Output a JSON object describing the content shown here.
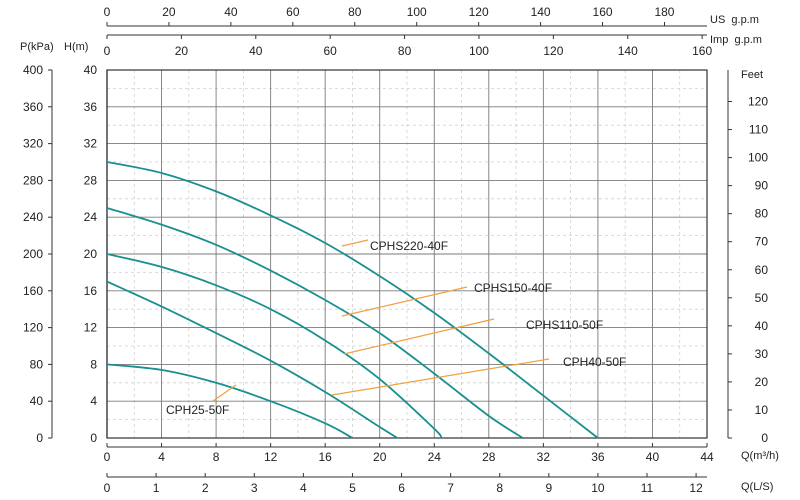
{
  "chart_data": {
    "type": "line",
    "title": "",
    "xlabel": "Q(m³/h)",
    "ylabel": "H(m)",
    "xlim": [
      0,
      44
    ],
    "ylim": [
      0,
      40
    ],
    "x_ticks": [
      0,
      4,
      8,
      12,
      16,
      20,
      24,
      28,
      32,
      36,
      40,
      44
    ],
    "y_ticks": [
      0,
      4,
      8,
      12,
      16,
      20,
      24,
      28,
      32,
      36,
      40
    ],
    "grid": true,
    "units": {
      "head": "H(m)",
      "pressure": "P(kPa)",
      "feet": "Feet",
      "flow": "Q(m³/h)",
      "ls": "Q(L/S)",
      "us": "US  g.p.m",
      "imp": "Imp  g.p.m"
    },
    "axes": {
      "pressure_ticks": [
        0,
        40,
        80,
        120,
        160,
        200,
        240,
        280,
        320,
        360,
        400
      ],
      "feet_ticks": [
        0,
        10,
        20,
        30,
        40,
        50,
        60,
        70,
        80,
        90,
        100,
        110,
        120
      ],
      "ls_ticks": [
        0,
        1,
        2,
        3,
        4,
        5,
        6,
        7,
        8,
        9,
        10,
        11,
        12
      ],
      "us_gpm_ticks": [
        0,
        20,
        40,
        60,
        80,
        100,
        120,
        140,
        160,
        180
      ],
      "imp_gpm_ticks": [
        0,
        20,
        40,
        60,
        80,
        100,
        120,
        140,
        160
      ]
    },
    "series": [
      {
        "name": "CPH25-50F",
        "x": [
          0,
          4,
          8,
          12,
          16,
          18
        ],
        "y": [
          8.0,
          7.4,
          6.0,
          4.0,
          1.6,
          0
        ]
      },
      {
        "name": "CPH40-50F",
        "x": [
          0,
          4,
          8,
          12,
          16,
          20,
          21.3
        ],
        "y": [
          17.0,
          14.3,
          11.4,
          8.4,
          5.0,
          1.2,
          0
        ]
      },
      {
        "name": "CPHS110-50F",
        "x": [
          0,
          4,
          8,
          12,
          16,
          20,
          24,
          24.5
        ],
        "y": [
          20.0,
          18.6,
          16.6,
          14.0,
          10.6,
          6.4,
          1.0,
          0
        ]
      },
      {
        "name": "CPHS150-40F",
        "x": [
          0,
          4,
          8,
          12,
          16,
          20,
          24,
          28,
          30.5
        ],
        "y": [
          25.0,
          23.2,
          21.0,
          18.2,
          15.0,
          11.4,
          7.0,
          2.4,
          0
        ]
      },
      {
        "name": "CPHS220-40F",
        "x": [
          0,
          4,
          8,
          12,
          16,
          20,
          24,
          28,
          32,
          36
        ],
        "y": [
          30.0,
          28.8,
          26.8,
          24.2,
          21.2,
          17.6,
          13.6,
          9.2,
          4.6,
          0
        ]
      }
    ],
    "annotations": [
      {
        "text": "CPHS220-40F",
        "series": "CPHS220-40F"
      },
      {
        "text": "CPHS150-40F",
        "series": "CPHS150-40F"
      },
      {
        "text": "CPHS110-50F",
        "series": "CPHS110-50F"
      },
      {
        "text": "CPH40-50F",
        "series": "CPH40-50F"
      },
      {
        "text": "CPH25-50F",
        "series": "CPH25-50F"
      }
    ],
    "colors": {
      "curve": "#1a8f8f",
      "leader": "#f0a040",
      "grid_major": "#7a7a7a",
      "grid_minor": "#d0d0d0",
      "axis": "#333333"
    }
  }
}
